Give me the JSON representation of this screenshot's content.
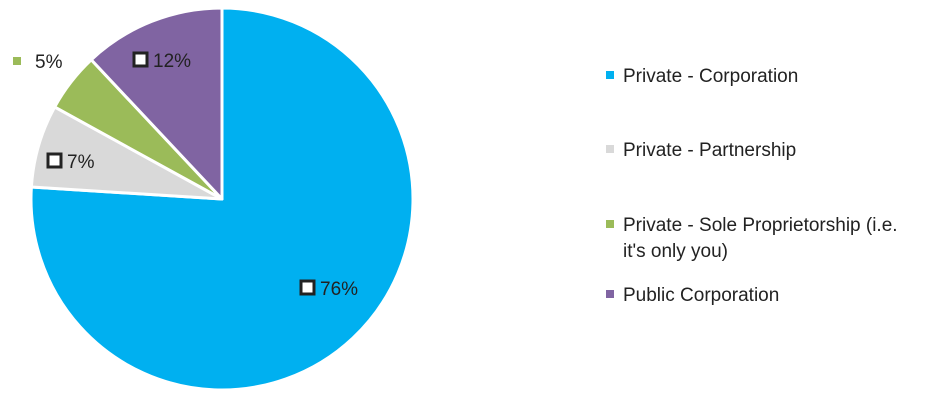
{
  "chart_data": {
    "type": "pie",
    "title": "",
    "categories": [
      "Private - Corporation",
      "Private - Partnership",
      "Private - Sole Proprietorship (i.e. it's only you)",
      "Public Corporation"
    ],
    "values": [
      76,
      7,
      5,
      12
    ],
    "data_labels": [
      "76%",
      "7%",
      "5%",
      "12%"
    ],
    "legend_lines": [
      [
        "Private - Corporation"
      ],
      [
        "Private - Partnership"
      ],
      [
        "Private - Sole Proprietorship (i.e.",
        "it's only you)"
      ],
      [
        "Public Corporation"
      ]
    ],
    "colors": [
      "#00B0F0",
      "#D9D9D9",
      "#9BBB59",
      "#8064A2"
    ],
    "slice_border_color": "#ffffff",
    "legend_position": "right",
    "start_angle": "12 o'clock, clockwise"
  }
}
